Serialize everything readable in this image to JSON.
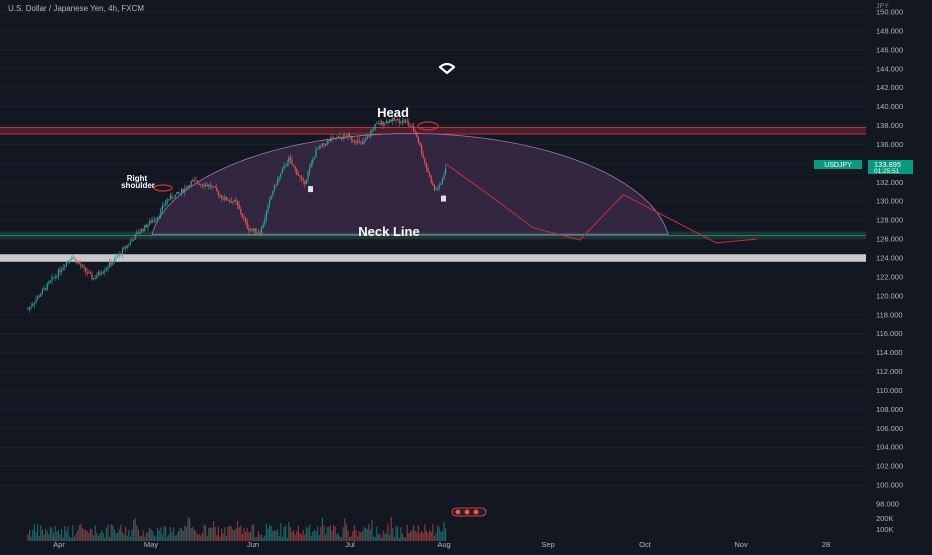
{
  "header": {
    "symbol_title": "U.S. Dollar / Japanese Yen, 4h, FXCM"
  },
  "colors": {
    "background": "#131722",
    "bull": "#26a69a",
    "bear": "#ef5350",
    "dome_fill": "#3d2b4a",
    "dome_stroke": "#9c7cb0",
    "projection": "#c2313a",
    "resistance_band": "#5a1f2a",
    "neckline_band": "#1f3d36",
    "support_band": "#c8c8c8",
    "price_badge": "#089981"
  },
  "price_axis": {
    "unit": "JPY",
    "labels": [
      "150.000",
      "148.000",
      "146.000",
      "144.000",
      "142.000",
      "140.000",
      "138.000",
      "136.000",
      "134.000",
      "132.000",
      "130.000",
      "128.000",
      "126.000",
      "124.000",
      "122.000",
      "120.000",
      "118.000",
      "116.000",
      "114.000",
      "112.000",
      "110.000",
      "108.000",
      "106.000",
      "104.000",
      "102.000",
      "100.000",
      "98.000"
    ],
    "volume_labels": [
      "200K",
      "100K"
    ]
  },
  "time_axis": {
    "labels": [
      "Apr",
      "May",
      "Jun",
      "Jul",
      "Aug",
      "Sep",
      "Oct",
      "Nov",
      "28"
    ]
  },
  "price_badge": {
    "symbol": "USDJPY",
    "price": "133.895",
    "countdown": "01:25:51"
  },
  "annotations": {
    "head": "Head",
    "right_shoulder_line1": "Right",
    "right_shoulder_line2": "shoulder",
    "neck_line": "Neck Line"
  },
  "chart_data": {
    "type": "candlestick",
    "symbol": "USDJPY",
    "ylim": [
      97,
      151
    ],
    "neckline": 126.4,
    "resistance_zone": [
      137.1,
      137.8
    ],
    "support_zone": [
      123.6,
      124.4
    ],
    "last_price": 133.895,
    "price_path": [
      {
        "x": "Mar 22",
        "y": 118.6
      },
      {
        "x": "Mar 29",
        "y": 121.4
      },
      {
        "x": "Apr 5",
        "y": 124.2
      },
      {
        "x": "Apr 12",
        "y": 121.8
      },
      {
        "x": "Apr 19",
        "y": 123.8
      },
      {
        "x": "Apr 26",
        "y": 126.5
      },
      {
        "x": "May 3",
        "y": 128.5
      },
      {
        "x": "May 6",
        "y": 130.2
      },
      {
        "x": "May 10",
        "y": 130.9
      },
      {
        "x": "May 14",
        "y": 132.1
      },
      {
        "x": "May 20",
        "y": 131.6
      },
      {
        "x": "May 24",
        "y": 130.3
      },
      {
        "x": "May 28",
        "y": 129.9
      },
      {
        "x": "Jun 1",
        "y": 127.1
      },
      {
        "x": "Jun 5",
        "y": 126.7
      },
      {
        "x": "Jun 9",
        "y": 131.2
      },
      {
        "x": "Jun 14",
        "y": 134.5
      },
      {
        "x": "Jun 19",
        "y": 131.8
      },
      {
        "x": "Jun 23",
        "y": 135.4
      },
      {
        "x": "Jun 27",
        "y": 136.4
      },
      {
        "x": "Jul 3",
        "y": 136.9
      },
      {
        "x": "Jul 8",
        "y": 136.0
      },
      {
        "x": "Jul 12",
        "y": 138.0
      },
      {
        "x": "Jul 17",
        "y": 138.6
      },
      {
        "x": "Jul 22",
        "y": 138.4
      },
      {
        "x": "Jul 25",
        "y": 137.3
      },
      {
        "x": "Jul 28",
        "y": 134.1
      },
      {
        "x": "Jul 31",
        "y": 131.2
      },
      {
        "x": "Aug 2",
        "y": 131.6
      },
      {
        "x": "Aug 4",
        "y": 133.9
      }
    ],
    "projection_path": [
      {
        "x": "Aug 4",
        "y": 133.9
      },
      {
        "x": "Aug 18",
        "y": 130.6
      },
      {
        "x": "Sep 1",
        "y": 127.2
      },
      {
        "x": "Sep 16",
        "y": 125.9
      },
      {
        "x": "Sep 30",
        "y": 130.7
      },
      {
        "x": "Oct 30",
        "y": 125.6
      },
      {
        "x": "Nov 12",
        "y": 126.0
      }
    ]
  }
}
